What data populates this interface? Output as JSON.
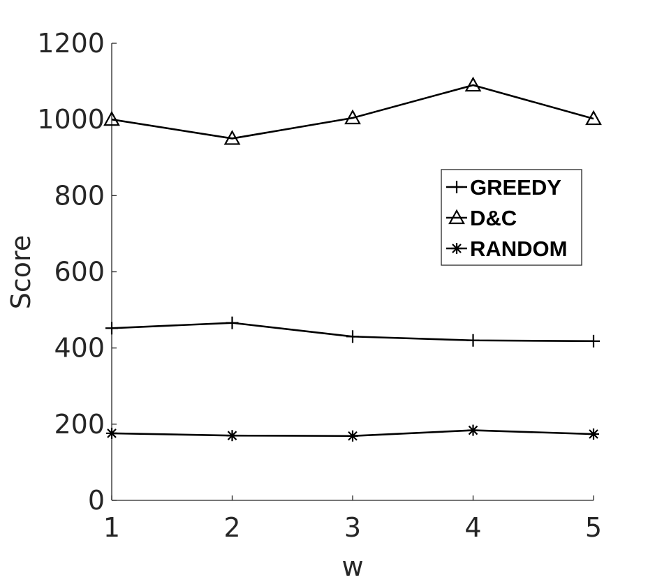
{
  "chart_data": {
    "type": "line",
    "title": "",
    "xlabel": "w",
    "ylabel": "Score",
    "x": [
      1,
      2,
      3,
      4,
      5
    ],
    "xticks": [
      "1",
      "2",
      "3",
      "4",
      "5"
    ],
    "yticks": [
      "0",
      "200",
      "400",
      "600",
      "800",
      "1000",
      "1200"
    ],
    "xlim": [
      1,
      5
    ],
    "ylim": [
      0,
      1200
    ],
    "grid": false,
    "legend_position": "top-right",
    "series": [
      {
        "name": "GREEDY",
        "marker": "plus",
        "color": "#000000",
        "values": [
          452,
          466,
          430,
          420,
          418
        ]
      },
      {
        "name": "D&C",
        "marker": "triangle",
        "color": "#000000",
        "values": [
          1000,
          950,
          1004,
          1090,
          1002
        ]
      },
      {
        "name": "RANDOM",
        "marker": "asterisk",
        "color": "#000000",
        "values": [
          176,
          170,
          169,
          184,
          174
        ]
      }
    ]
  }
}
